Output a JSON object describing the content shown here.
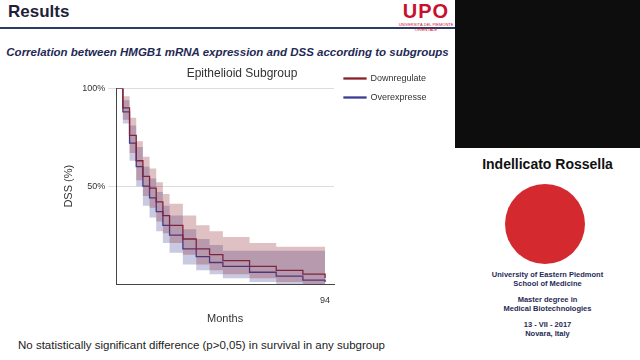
{
  "slide": {
    "header": "Results",
    "logo": "UPO",
    "logo_subtitle": "UNIVERSITÀ DEL PIEMONTE ORIENTALE",
    "subtitle": "Correlation between HMGB1 mRNA expression and DSS according to subgroups",
    "footnote": "No statistically significant difference (p>0,05) in survival in any subgroup"
  },
  "sidebar": {
    "speaker": "Indellicato Rossella",
    "lines": [
      [
        "University of Eastern Piedmont",
        "School of Medicine"
      ],
      [
        "Master degree in",
        "Medical Biotechnologies"
      ],
      [
        "13 - VII - 2017",
        "Novara, Italy"
      ]
    ]
  },
  "chart_data": {
    "type": "line",
    "title": "Epithelioid Subgroup",
    "x_label": "Months",
    "y_label": "DSS (%)",
    "x": [
      0,
      3,
      6,
      9,
      12,
      15,
      18,
      21,
      24,
      30,
      36,
      42,
      48,
      60,
      72,
      84,
      94
    ],
    "series": [
      {
        "name": "Downregulated",
        "color": "#8b1f2a",
        "values": [
          100,
          90,
          76,
          63,
          55,
          49,
          42,
          35,
          30,
          23,
          18,
          15,
          12,
          9,
          7,
          5,
          3
        ],
        "lower": [
          100,
          84,
          67,
          53,
          45,
          39,
          32,
          26,
          21,
          15,
          10,
          7,
          5,
          3,
          1,
          0,
          0
        ],
        "upper": [
          100,
          96,
          85,
          73,
          65,
          59,
          52,
          46,
          41,
          35,
          30,
          27,
          24,
          21,
          19,
          19,
          19
        ]
      },
      {
        "name": "Overexpressed",
        "color": "#3c3c96",
        "values": [
          100,
          88,
          72,
          60,
          50,
          44,
          37,
          30,
          25,
          18,
          14,
          11,
          9,
          6,
          4,
          2,
          1
        ],
        "lower": [
          100,
          82,
          63,
          50,
          40,
          34,
          27,
          21,
          16,
          10,
          7,
          5,
          3,
          1,
          0,
          0,
          0
        ],
        "upper": [
          100,
          94,
          81,
          70,
          60,
          54,
          47,
          40,
          35,
          28,
          23,
          20,
          17,
          17,
          17,
          17,
          17
        ]
      }
    ],
    "xlim": [
      0,
      98
    ],
    "xticks": [
      94
    ],
    "ylim": [
      0,
      100
    ],
    "yticks": [
      {
        "value": 50,
        "label": "50%"
      },
      {
        "value": 100,
        "label": "100%"
      }
    ],
    "grid": true,
    "legend": "upper right",
    "line_style": "step"
  }
}
